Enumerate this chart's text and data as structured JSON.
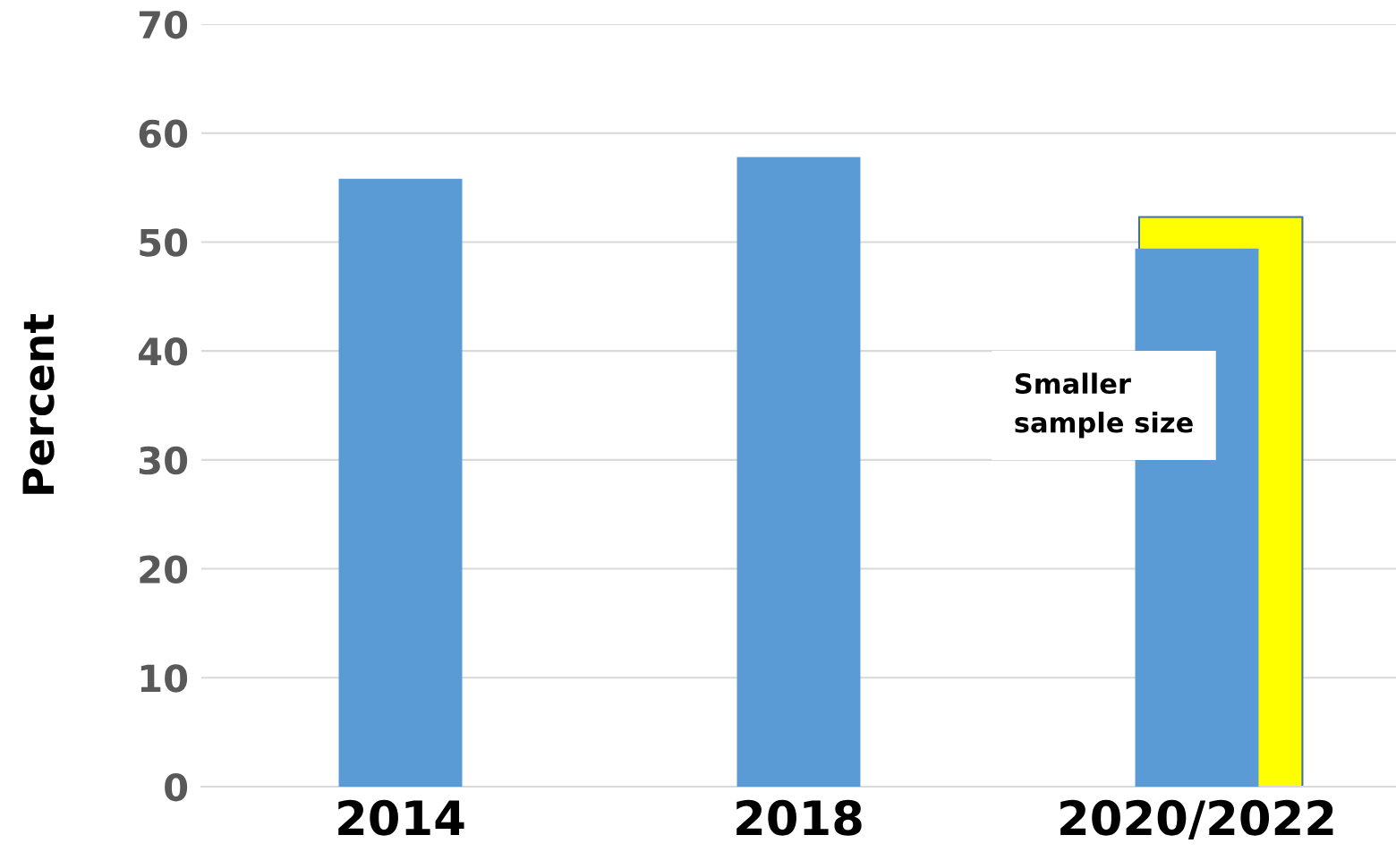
{
  "chart_data": {
    "type": "bar",
    "ylabel": "Percent",
    "categories": [
      "2014",
      "2018",
      "2020/2022"
    ],
    "series": [
      {
        "color": "#ffff00",
        "values": [
          null,
          null,
          52.3
        ]
      },
      {
        "color": "#5b9bd5",
        "values": [
          55.8,
          57.8,
          49.4
        ]
      }
    ],
    "ylim": [
      0,
      70
    ],
    "yticks": [
      0,
      10,
      20,
      30,
      40,
      50,
      60,
      70
    ],
    "grid": "y",
    "legend": false,
    "annotations": [
      "Smaller\nsample size"
    ]
  }
}
